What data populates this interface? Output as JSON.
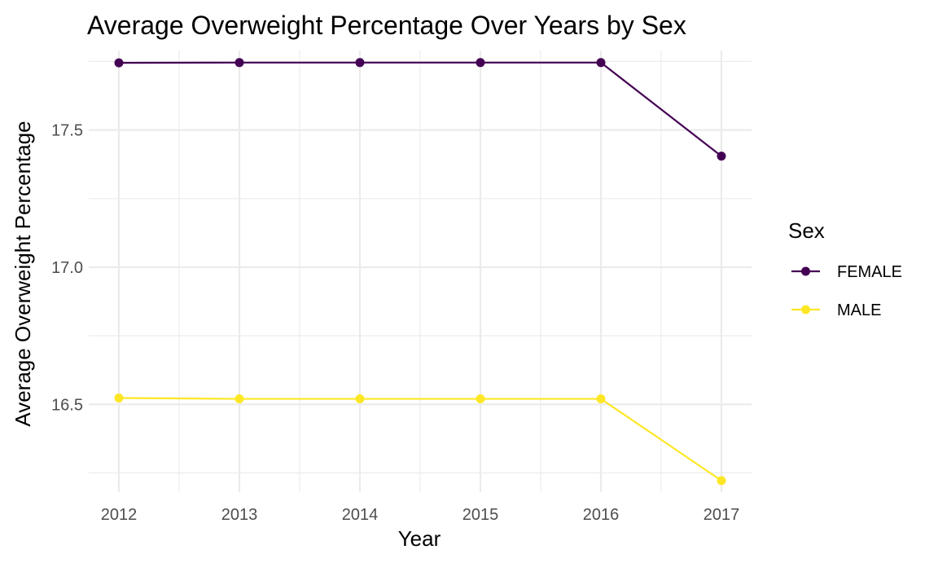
{
  "chart_data": {
    "type": "line",
    "title": "Average Overweight Percentage Over Years by Sex",
    "xlabel": "Year",
    "ylabel": "Average Overweight Percentage",
    "x": [
      2012,
      2013,
      2014,
      2015,
      2016,
      2017
    ],
    "x_ticks": [
      "2012",
      "2013",
      "2014",
      "2015",
      "2016",
      "2017"
    ],
    "y_ticks": [
      16.5,
      17.0,
      17.5
    ],
    "y_tick_labels": [
      "16.5",
      "17.0",
      "17.5"
    ],
    "ylim": [
      16.18,
      17.79
    ],
    "xlim": [
      2011.75,
      2017.25
    ],
    "grid": true,
    "legend": {
      "title": "Sex",
      "position": "right"
    },
    "series": [
      {
        "name": "FEMALE",
        "color": "#440154",
        "values": [
          17.745,
          17.746,
          17.746,
          17.746,
          17.746,
          17.405
        ]
      },
      {
        "name": "MALE",
        "color": "#FDE725",
        "values": [
          16.523,
          16.52,
          16.52,
          16.52,
          16.52,
          16.222
        ]
      }
    ]
  }
}
